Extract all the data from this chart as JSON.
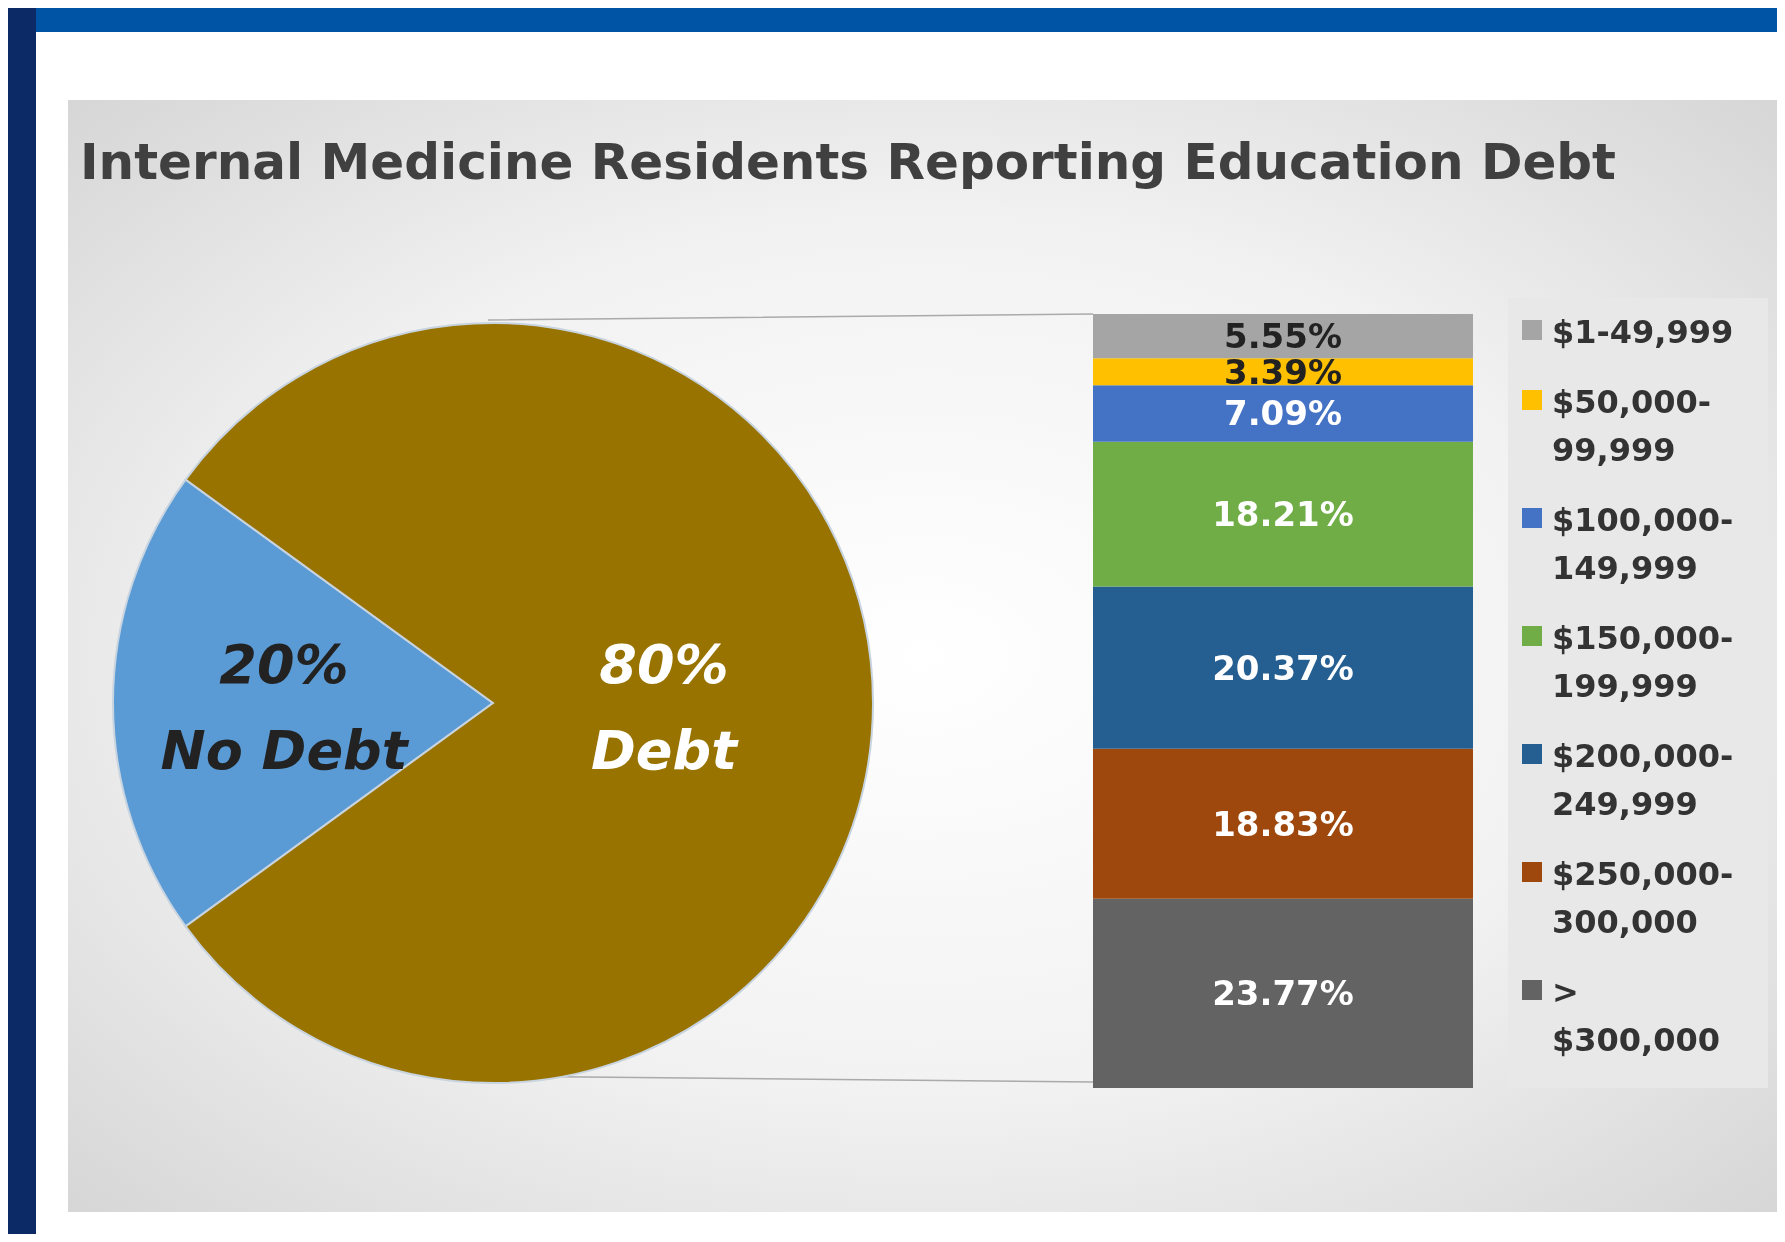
{
  "chart_data": [
    {
      "type": "pie",
      "title": "Internal Medicine Residents Reporting Education Debt",
      "categories": [
        "No Debt",
        "Debt"
      ],
      "values": [
        20,
        80
      ],
      "colors": [
        "#5b9bd5",
        "#987300"
      ],
      "value_labels": [
        "20%",
        "80%"
      ]
    },
    {
      "type": "bar",
      "stacked": true,
      "categories": [
        null
      ],
      "legend": "right",
      "series": [
        {
          "name": "> $300,000",
          "color": "#636363",
          "values": [
            23.77
          ],
          "value_labels": [
            "23.77%"
          ]
        },
        {
          "name": "$250,000-300,000",
          "color": "#9e480e",
          "values": [
            18.83
          ],
          "value_labels": [
            "18.83%"
          ]
        },
        {
          "name": "$200,000-249,999",
          "color": "#255e91",
          "values": [
            20.37
          ],
          "value_labels": [
            "20.37%"
          ]
        },
        {
          "name": "$150,000-199,999",
          "color": "#70ad47",
          "values": [
            18.21
          ],
          "value_labels": [
            "18.21%"
          ]
        },
        {
          "name": "$100,000-149,999",
          "color": "#4472c4",
          "values": [
            7.09
          ],
          "value_labels": [
            "7.09%"
          ]
        },
        {
          "name": "$50,000-99,999",
          "color": "#ffc000",
          "values": [
            3.39
          ],
          "value_labels": [
            "3.39%"
          ]
        },
        {
          "name": "$1-49,999",
          "color": "#a5a5a5",
          "values": [
            5.55
          ],
          "value_labels": [
            "5.55%"
          ]
        }
      ]
    }
  ]
}
